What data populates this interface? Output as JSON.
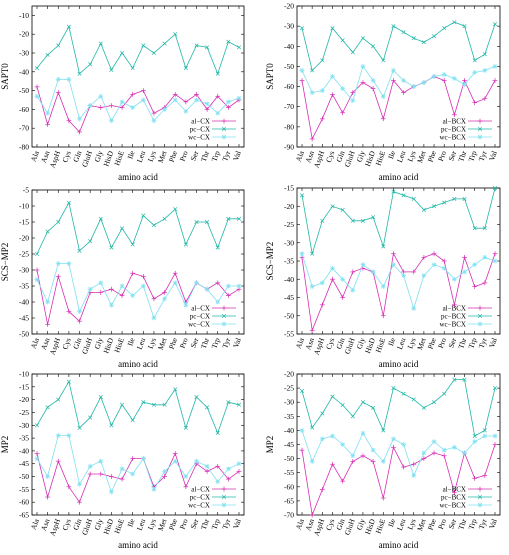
{
  "chart_data": [
    {
      "type": "line",
      "panel": "top-left",
      "xlabel": "amino acid",
      "ylabel": "SAPT0",
      "ylim": [
        -80,
        -5
      ],
      "yticks": [
        -80,
        -70,
        -60,
        -50,
        -40,
        -30,
        -20,
        -10
      ],
      "categories": [
        "Ala",
        "Asn",
        "AspH",
        "Cys",
        "Gln",
        "GluH",
        "Gly",
        "HisD",
        "HisE",
        "Ile",
        "Leu",
        "Lys",
        "Met",
        "Phe",
        "Pro",
        "Ser",
        "Thr",
        "Trp",
        "Tyr",
        "Val"
      ],
      "legend_position": "bottom-right",
      "series": [
        {
          "name": "al−CX",
          "color": "#d62fb4",
          "marker": "plus",
          "values": [
            -48,
            -68,
            -51,
            -66,
            -72,
            -58,
            -59,
            -58,
            -59,
            -52,
            -50,
            -62,
            -59,
            -52,
            -56,
            -52,
            -60,
            -53,
            -59,
            -55
          ]
        },
        {
          "name": "pc−CX",
          "color": "#21b7a7",
          "marker": "cross",
          "values": [
            -38,
            -31,
            -26,
            -16,
            -41,
            -36,
            -25,
            -39,
            -30,
            -38,
            -26,
            -30,
            -25,
            -20,
            -38,
            -26,
            -27,
            -41,
            -24,
            -27
          ]
        },
        {
          "name": "wc−CX",
          "color": "#7fe0f0",
          "marker": "star",
          "values": [
            -53,
            -62,
            -44,
            -44,
            -65,
            -58,
            -53,
            -66,
            -56,
            -59,
            -55,
            -66,
            -60,
            -55,
            -61,
            -55,
            -57,
            -62,
            -56,
            -54
          ]
        }
      ]
    },
    {
      "type": "line",
      "panel": "top-right",
      "xlabel": "amino acid",
      "ylabel": "SAPT0",
      "ylim": [
        -90,
        -20
      ],
      "yticks": [
        -90,
        -80,
        -70,
        -60,
        -50,
        -40,
        -30,
        -20
      ],
      "categories": [
        "Ala",
        "Asn",
        "AspH",
        "Cys",
        "Gln",
        "GluH",
        "Gly",
        "HisD",
        "HisE",
        "Ile",
        "Leu",
        "Lys",
        "Met",
        "Phe",
        "Pro",
        "Ser",
        "Thr",
        "Trp",
        "Tyr",
        "Val"
      ],
      "legend_position": "bottom-right",
      "series": [
        {
          "name": "al−BCX",
          "color": "#d62fb4",
          "marker": "plus",
          "values": [
            -57,
            -86,
            -76,
            -64,
            -73,
            -63,
            -58,
            -61,
            -76,
            -57,
            -63,
            -60,
            -58,
            -55,
            -57,
            -74,
            -57,
            -68,
            -66,
            -57
          ]
        },
        {
          "name": "pc−BCX",
          "color": "#21b7a7",
          "marker": "cross",
          "values": [
            -31,
            -52,
            -47,
            -31,
            -37,
            -43,
            -36,
            -40,
            -47,
            -30,
            -33,
            -36,
            -38,
            -35,
            -31,
            -28,
            -30,
            -47,
            -44,
            -29
          ]
        },
        {
          "name": "wc−BCX",
          "color": "#7fe0f0",
          "marker": "star",
          "values": [
            -52,
            -63,
            -62,
            -55,
            -61,
            -67,
            -50,
            -57,
            -65,
            -52,
            -57,
            -60,
            -58,
            -55,
            -54,
            -56,
            -59,
            -53,
            -52,
            -50
          ]
        }
      ]
    },
    {
      "type": "line",
      "panel": "middle-left",
      "xlabel": "amino acid",
      "ylabel": "SCS−MP2",
      "ylim": [
        -50,
        -5
      ],
      "yticks": [
        -50,
        -45,
        -40,
        -35,
        -30,
        -25,
        -20,
        -15,
        -10,
        -5
      ],
      "categories": [
        "Ala",
        "Asn",
        "AspH",
        "Cys",
        "Gln",
        "GluH",
        "Gly",
        "HisD",
        "HisE",
        "Ile",
        "Leu",
        "Lys",
        "Met",
        "Phe",
        "Pro",
        "Ser",
        "Thr",
        "Trp",
        "Tyr",
        "Val"
      ],
      "legend_position": "bottom-right",
      "series": [
        {
          "name": "al−CX",
          "color": "#d62fb4",
          "marker": "plus",
          "values": [
            -30,
            -47,
            -32,
            -43,
            -46,
            -37,
            -37,
            -36,
            -38,
            -31,
            -32,
            -39,
            -37,
            -31,
            -40,
            -34,
            -36,
            -34,
            -38,
            -36
          ]
        },
        {
          "name": "pc−CX",
          "color": "#21b7a7",
          "marker": "cross",
          "values": [
            -25,
            -18,
            -15,
            -9,
            -24,
            -21,
            -14,
            -23,
            -17,
            -22,
            -13,
            -16,
            -14,
            -11,
            -22,
            -15,
            -15,
            -23,
            -14,
            -14
          ]
        },
        {
          "name": "wc−CX",
          "color": "#7fe0f0",
          "marker": "star",
          "values": [
            -33,
            -40,
            -28,
            -28,
            -43,
            -36,
            -34,
            -41,
            -35,
            -38,
            -35,
            -45,
            -39,
            -34,
            -41,
            -34,
            -36,
            -40,
            -35,
            -35
          ]
        }
      ]
    },
    {
      "type": "line",
      "panel": "middle-right",
      "xlabel": "amino acid",
      "ylabel": "SCS−MP2",
      "ylim": [
        -55,
        -15
      ],
      "yticks": [
        -55,
        -50,
        -45,
        -40,
        -35,
        -30,
        -25,
        -20,
        -15
      ],
      "categories": [
        "Ala",
        "Asn",
        "AspH",
        "Cys",
        "Gln",
        "GluH",
        "Gly",
        "HisD",
        "HisE",
        "Ile",
        "Leu",
        "Lys",
        "Met",
        "Phe",
        "Pro",
        "Ser",
        "Thr",
        "Trp",
        "Tyr",
        "Val"
      ],
      "legend_position": "bottom-right",
      "series": [
        {
          "name": "al−BCX",
          "color": "#d62fb4",
          "marker": "plus",
          "values": [
            -34,
            -54,
            -47,
            -40,
            -45,
            -38,
            -37,
            -38,
            -50,
            -33,
            -38,
            -38,
            -34,
            -33,
            -35,
            -47,
            -34,
            -42,
            -41,
            -33
          ]
        },
        {
          "name": "pc−BCX",
          "color": "#21b7a7",
          "marker": "cross",
          "values": [
            -17,
            -33,
            -24,
            -20,
            -21,
            -24,
            -24,
            -23,
            -31,
            -16,
            -17,
            -18,
            -21,
            -20,
            -19,
            -18,
            -18,
            -26,
            -26,
            -15
          ]
        },
        {
          "name": "wc−BCX",
          "color": "#7fe0f0",
          "marker": "star",
          "values": [
            -33,
            -42,
            -41,
            -37,
            -40,
            -43,
            -36,
            -38,
            -42,
            -36,
            -39,
            -48,
            -39,
            -36,
            -37,
            -40,
            -38,
            -36,
            -34,
            -35
          ]
        }
      ]
    },
    {
      "type": "line",
      "panel": "bottom-left",
      "xlabel": "amino acid",
      "ylabel": "MP2",
      "ylim": [
        -65,
        -10
      ],
      "yticks": [
        -65,
        -60,
        -55,
        -50,
        -45,
        -40,
        -35,
        -30,
        -25,
        -20,
        -15,
        -10
      ],
      "categories": [
        "Ala",
        "Asn",
        "AspH",
        "Cys",
        "Gln",
        "GluH",
        "Gly",
        "HisD",
        "HisE",
        "Ile",
        "Leu",
        "Lys",
        "Met",
        "Phe",
        "Pro",
        "Ser",
        "Thr",
        "Trp",
        "Tyr",
        "Val"
      ],
      "legend_position": "bottom-right",
      "series": [
        {
          "name": "al−CX",
          "color": "#d62fb4",
          "marker": "plus",
          "values": [
            -41,
            -58,
            -44,
            -54,
            -60,
            -49,
            -49,
            -50,
            -51,
            -43,
            -43,
            -54,
            -50,
            -41,
            -54,
            -45,
            -48,
            -46,
            -51,
            -48
          ]
        },
        {
          "name": "pc−CX",
          "color": "#21b7a7",
          "marker": "cross",
          "values": [
            -30,
            -23,
            -20,
            -13,
            -31,
            -27,
            -19,
            -30,
            -22,
            -28,
            -21,
            -22,
            -22,
            -16,
            -31,
            -19,
            -23,
            -33,
            -21,
            -22
          ]
        },
        {
          "name": "wc−CX",
          "color": "#7fe0f0",
          "marker": "star",
          "values": [
            -43,
            -50,
            -34,
            -34,
            -53,
            -46,
            -44,
            -56,
            -47,
            -49,
            -43,
            -55,
            -48,
            -44,
            -50,
            -44,
            -46,
            -52,
            -47,
            -45
          ]
        }
      ]
    },
    {
      "type": "line",
      "panel": "bottom-right",
      "xlabel": "amino acid",
      "ylabel": "MP2",
      "ylim": [
        -70,
        -20
      ],
      "yticks": [
        -70,
        -65,
        -60,
        -55,
        -50,
        -45,
        -40,
        -35,
        -30,
        -25,
        -20
      ],
      "categories": [
        "Ala",
        "Asn",
        "AspH",
        "Cys",
        "Gln",
        "GluH",
        "Gly",
        "HisD",
        "HisE",
        "Ile",
        "Leu",
        "Lys",
        "Met",
        "Phe",
        "Pro",
        "Ser",
        "Thr",
        "Trp",
        "Tyr",
        "Val"
      ],
      "legend_position": "bottom-right",
      "series": [
        {
          "name": "al−BCX",
          "color": "#d62fb4",
          "marker": "plus",
          "values": [
            -47,
            -70,
            -61,
            -52,
            -58,
            -51,
            -49,
            -51,
            -64,
            -46,
            -53,
            -52,
            -50,
            -48,
            -49,
            -62,
            -48,
            -57,
            -56,
            -45
          ]
        },
        {
          "name": "pc−BCX",
          "color": "#21b7a7",
          "marker": "cross",
          "values": [
            -26,
            -39,
            -34,
            -28,
            -31,
            -35,
            -30,
            -32,
            -40,
            -25,
            -27,
            -29,
            -32,
            -30,
            -27,
            -22,
            -22,
            -42,
            -40,
            -25
          ]
        },
        {
          "name": "wc−BCX",
          "color": "#7fe0f0",
          "marker": "star",
          "values": [
            -40,
            -51,
            -43,
            -42,
            -45,
            -49,
            -41,
            -47,
            -51,
            -43,
            -45,
            -56,
            -48,
            -44,
            -47,
            -46,
            -48,
            -44,
            -42,
            -42
          ]
        }
      ]
    }
  ]
}
